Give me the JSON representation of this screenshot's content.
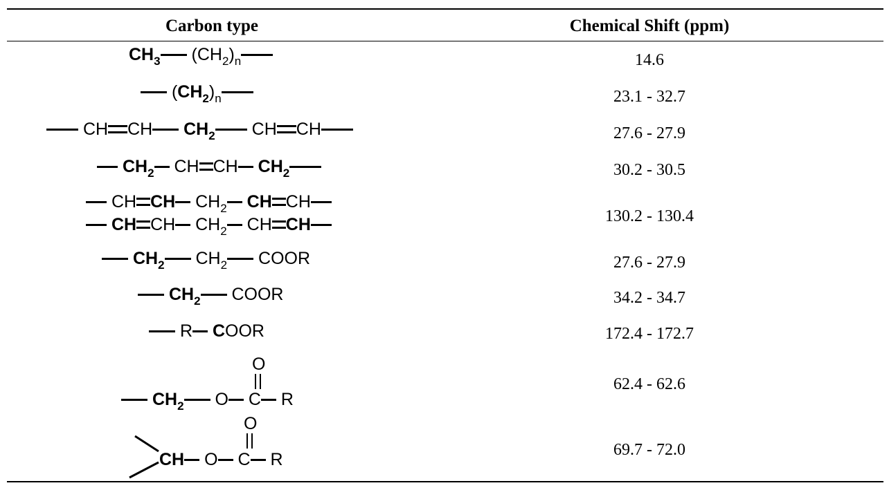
{
  "table": {
    "headers": {
      "carbon_type": "Carbon type",
      "chemical_shift": "Chemical Shift (ppm)"
    },
    "rows": [
      {
        "formula": "CH3—(CH2)n—",
        "shift": "14.6"
      },
      {
        "formula": "—(CH2)n—",
        "shift": "23.1 - 32.7"
      },
      {
        "formula": "—CH=CH—CH2—CH=CH—",
        "shift": "27.6 - 27.9"
      },
      {
        "formula": "—CH2—CH=CH—CH2—",
        "shift": "30.2 - 30.5"
      },
      {
        "formula": "—CH=CH—CH2—CH=CH— / —CH=CH—CH2—CH=CH—",
        "shift": "130.2 - 130.4"
      },
      {
        "formula": "—CH2—CH2—COOR",
        "shift": "27.6 - 27.9"
      },
      {
        "formula": "—CH2—COOR",
        "shift": "34.2 - 34.7"
      },
      {
        "formula": "—R—COOR",
        "shift": "172.4 - 172.7"
      },
      {
        "formula": "—CH2—O—C(=O)—R",
        "shift": "62.4 - 62.6"
      },
      {
        "formula": ">CH—O—C(=O)—R",
        "shift": "69.7 - 72.0"
      }
    ]
  },
  "glyphs": {
    "ch": "CH",
    "ch2": "CH",
    "ch3": "CH",
    "c": "C",
    "o": "O",
    "r": "R",
    "coor": "COOR",
    "oor": "OOR",
    "two": "2",
    "three": "3",
    "n": "n",
    "open": "(",
    "close": ")"
  }
}
